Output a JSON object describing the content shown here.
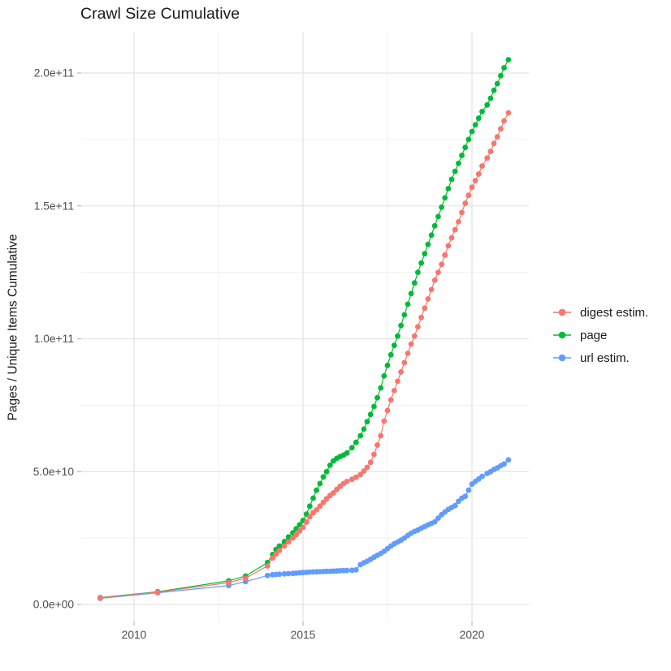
{
  "title": "Crawl Size Cumulative",
  "colors": {
    "background": "#ffffff",
    "grid_major": "#e4e4e4",
    "grid_minor": "#f0f0f0",
    "tick_mark": "#b8b8b8",
    "axis_text": "#4d4d4d",
    "title_text": "#1a1a1a",
    "digest": "#F8766D",
    "page": "#00BA38",
    "url": "#619CFF"
  },
  "chart_data": {
    "type": "scatter",
    "style": "points connected by thin lines (ggplot2 default palette, light grey grid on white)",
    "title": "Crawl Size Cumulative",
    "xlabel": "",
    "ylabel": "Pages / Unique Items Cumulative",
    "y_unit": "billions (1e9) of pages / unique items",
    "x_unit": "decimal year",
    "xlim": [
      2008.4,
      2021.7
    ],
    "ylim_billions": [
      -6,
      215
    ],
    "grid": "on",
    "legend_position": "right-middle",
    "x_ticks": [
      {
        "value": 2010,
        "label": "2010"
      },
      {
        "value": 2015,
        "label": "2015"
      },
      {
        "value": 2020,
        "label": "2020"
      }
    ],
    "x_minor": [
      2012.5,
      2017.5
    ],
    "y_ticks": [
      {
        "value": 0,
        "label": "0.0e+00"
      },
      {
        "value": 50,
        "label": "5.0e+10"
      },
      {
        "value": 100,
        "label": "1.0e+11"
      },
      {
        "value": 150,
        "label": "1.5e+11"
      },
      {
        "value": 200,
        "label": "2.0e+11"
      }
    ],
    "y_minor": [
      25,
      75,
      125,
      175
    ],
    "x": [
      2009.0,
      2010.7,
      2012.8,
      2013.3,
      2013.95,
      2014.1,
      2014.2,
      2014.3,
      2014.45,
      2014.57,
      2014.7,
      2014.8,
      2014.9,
      2015.0,
      2015.1,
      2015.2,
      2015.3,
      2015.4,
      2015.5,
      2015.6,
      2015.7,
      2015.8,
      2015.9,
      2016.0,
      2016.1,
      2016.2,
      2016.3,
      2016.45,
      2016.57,
      2016.7,
      2016.8,
      2016.9,
      2017.0,
      2017.1,
      2017.2,
      2017.3,
      2017.4,
      2017.5,
      2017.6,
      2017.7,
      2017.8,
      2017.9,
      2018.0,
      2018.1,
      2018.2,
      2018.3,
      2018.4,
      2018.5,
      2018.6,
      2018.7,
      2018.8,
      2018.9,
      2019.0,
      2019.1,
      2019.2,
      2019.3,
      2019.4,
      2019.5,
      2019.6,
      2019.7,
      2019.8,
      2019.9,
      2020.0,
      2020.1,
      2020.2,
      2020.3,
      2020.45,
      2020.55,
      2020.65,
      2020.75,
      2020.85,
      2020.95,
      2021.08
    ],
    "series": [
      {
        "name": "digest estim.",
        "color": "#F8766D",
        "values_billions": [
          2.5,
          4.6,
          8.2,
          9.9,
          14.5,
          17.5,
          19.0,
          20.3,
          22.0,
          23.5,
          25.0,
          26.3,
          27.7,
          29.0,
          31.0,
          33.0,
          34.5,
          35.6,
          37.0,
          38.4,
          39.8,
          41.0,
          42.0,
          43.3,
          44.5,
          45.5,
          46.3,
          47.1,
          47.9,
          48.9,
          50.2,
          51.6,
          53.5,
          56.5,
          60.0,
          63.5,
          69.0,
          73.0,
          77.0,
          80.5,
          84.0,
          87.5,
          91.0,
          94.5,
          98.0,
          101.0,
          104.5,
          108.0,
          111.5,
          115.0,
          118.5,
          122.0,
          125.0,
          128.0,
          131.5,
          135.0,
          138.0,
          141.0,
          144.0,
          147.5,
          151.0,
          154.0,
          157.0,
          159.5,
          162.0,
          165.0,
          168.0,
          170.5,
          173.5,
          176.0,
          179.0,
          182.0,
          185.0
        ]
      },
      {
        "name": "page",
        "color": "#00BA38",
        "values_billions": [
          2.6,
          4.8,
          8.9,
          10.7,
          15.8,
          18.8,
          20.7,
          22.0,
          23.7,
          25.4,
          27.0,
          28.5,
          30.0,
          31.6,
          34.0,
          37.0,
          40.0,
          43.0,
          45.5,
          48.0,
          50.0,
          52.4,
          54.0,
          55.0,
          55.7,
          56.2,
          57.0,
          59.0,
          61.0,
          63.5,
          66.0,
          68.8,
          71.5,
          74.5,
          77.8,
          81.5,
          86.0,
          90.0,
          94.0,
          97.5,
          101.0,
          105.0,
          109.0,
          113.0,
          117.0,
          121.0,
          125.0,
          128.5,
          132.0,
          135.5,
          139.0,
          142.5,
          146.0,
          149.5,
          153.0,
          156.5,
          160.0,
          163.0,
          166.0,
          169.0,
          172.0,
          175.0,
          178.0,
          180.5,
          183.0,
          185.5,
          188.0,
          190.5,
          193.5,
          196.0,
          199.0,
          202.0,
          205.0
        ]
      },
      {
        "name": "url estim.",
        "color": "#619CFF",
        "values_billions": [
          2.3,
          4.4,
          7.1,
          8.6,
          10.9,
          11.2,
          11.3,
          11.4,
          11.5,
          11.6,
          11.7,
          11.8,
          11.9,
          12.0,
          12.1,
          12.2,
          12.25,
          12.3,
          12.35,
          12.4,
          12.45,
          12.5,
          12.55,
          12.6,
          12.7,
          12.75,
          12.8,
          12.9,
          13.0,
          15.0,
          15.7,
          16.3,
          17.0,
          17.8,
          18.5,
          19.2,
          20.0,
          21.0,
          22.0,
          22.8,
          23.5,
          24.2,
          25.0,
          26.0,
          26.8,
          27.5,
          28.0,
          28.7,
          29.3,
          30.0,
          30.5,
          31.1,
          32.5,
          33.8,
          34.8,
          35.8,
          36.5,
          37.2,
          38.8,
          40.0,
          40.7,
          43.0,
          45.3,
          46.3,
          47.2,
          48.2,
          49.3,
          50.0,
          50.8,
          51.4,
          52.2,
          52.9,
          54.4
        ]
      }
    ]
  }
}
